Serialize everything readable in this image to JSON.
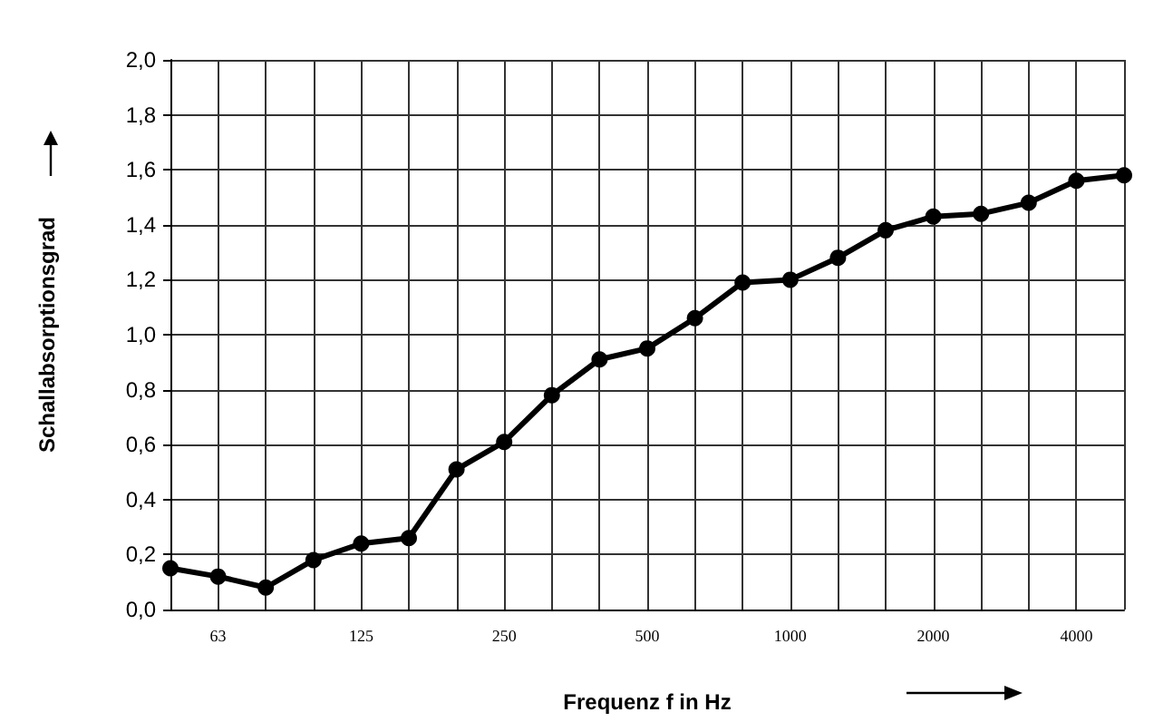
{
  "chart_data": {
    "type": "line",
    "xlabel": "Frequenz f in Hz",
    "ylabel": "Schallabsorptionsgrad",
    "categories": [
      null,
      "63",
      null,
      null,
      "125",
      null,
      null,
      "250",
      null,
      null,
      "500",
      null,
      null,
      "1000",
      null,
      null,
      "2000",
      null,
      null,
      "4000",
      null
    ],
    "series": [
      {
        "color": "#000000",
        "values": [
          0.15,
          0.12,
          0.08,
          0.18,
          0.24,
          0.26,
          0.51,
          0.61,
          0.78,
          0.91,
          0.95,
          1.06,
          1.19,
          1.2,
          1.28,
          1.38,
          1.43,
          1.44,
          1.48,
          1.56,
          1.58
        ]
      }
    ],
    "ylim": [
      0,
      2.0
    ],
    "yticks": [
      {
        "value": 0,
        "label": "0,0"
      },
      {
        "value": 0.2,
        "label": "0,2"
      },
      {
        "value": 0.4,
        "label": "0,4"
      },
      {
        "value": 0.6,
        "label": "0,6"
      },
      {
        "value": 0.8,
        "label": "0,8"
      },
      {
        "value": 1.0,
        "label": "1,0"
      },
      {
        "value": 1.2,
        "label": "1,2"
      },
      {
        "value": 1.4,
        "label": "1,4"
      },
      {
        "value": 1.6,
        "label": "1,6"
      },
      {
        "value": 1.8,
        "label": "1,8"
      },
      {
        "value": 2.0,
        "label": "2,0"
      }
    ],
    "grid": true,
    "marker": "circle",
    "line_style": "solid"
  }
}
